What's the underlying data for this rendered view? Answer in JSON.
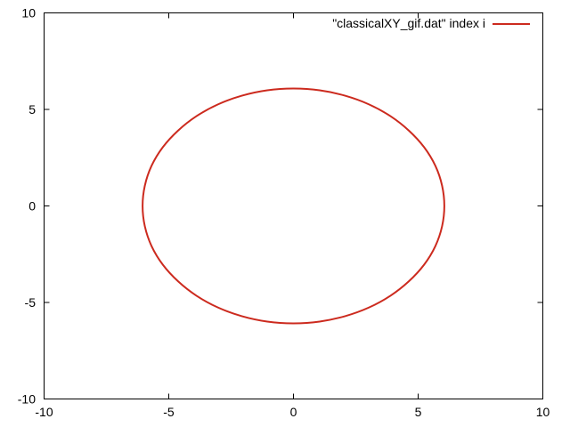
{
  "chart_data": {
    "type": "line",
    "title": "",
    "xlabel": "",
    "ylabel": "",
    "xlim": [
      -10,
      10
    ],
    "ylim": [
      -10,
      10
    ],
    "grid": false,
    "legend_position": "top-right",
    "x_ticks": [
      {
        "value": -10,
        "label": "-10"
      },
      {
        "value": -5,
        "label": "-5"
      },
      {
        "value": 0,
        "label": "0"
      },
      {
        "value": 5,
        "label": "5"
      },
      {
        "value": 10,
        "label": "10"
      }
    ],
    "y_ticks": [
      {
        "value": -10,
        "label": "-10"
      },
      {
        "value": -5,
        "label": "-5"
      },
      {
        "value": 0,
        "label": "0"
      },
      {
        "value": 5,
        "label": "5"
      },
      {
        "value": 10,
        "label": "10"
      }
    ],
    "series": [
      {
        "name": "\"classicalXY_gif.dat\" index i",
        "color": "#cc2a1e",
        "x": [
          6.05,
          5.96,
          5.69,
          5.24,
          4.63,
          3.89,
          3.03,
          2.07,
          1.05,
          0.0,
          -1.05,
          -2.07,
          -3.03,
          -3.89,
          -4.63,
          -5.24,
          -5.69,
          -5.96,
          -6.05,
          -5.96,
          -5.69,
          -5.24,
          -4.63,
          -3.89,
          -3.03,
          -2.07,
          -1.05,
          0.0,
          1.05,
          2.07,
          3.03,
          3.89,
          4.63,
          5.24,
          5.69,
          5.96,
          6.05
        ],
        "y": [
          0.0,
          1.05,
          2.08,
          3.04,
          3.9,
          4.65,
          5.26,
          5.71,
          5.99,
          6.08,
          5.99,
          5.71,
          5.26,
          4.65,
          3.9,
          3.04,
          2.08,
          1.05,
          0.0,
          -1.05,
          -2.08,
          -3.04,
          -3.9,
          -4.65,
          -5.26,
          -5.71,
          -5.99,
          -6.08,
          -5.99,
          -5.71,
          -5.26,
          -4.65,
          -3.9,
          -3.04,
          -2.08,
          -1.05,
          0.0
        ]
      }
    ]
  }
}
